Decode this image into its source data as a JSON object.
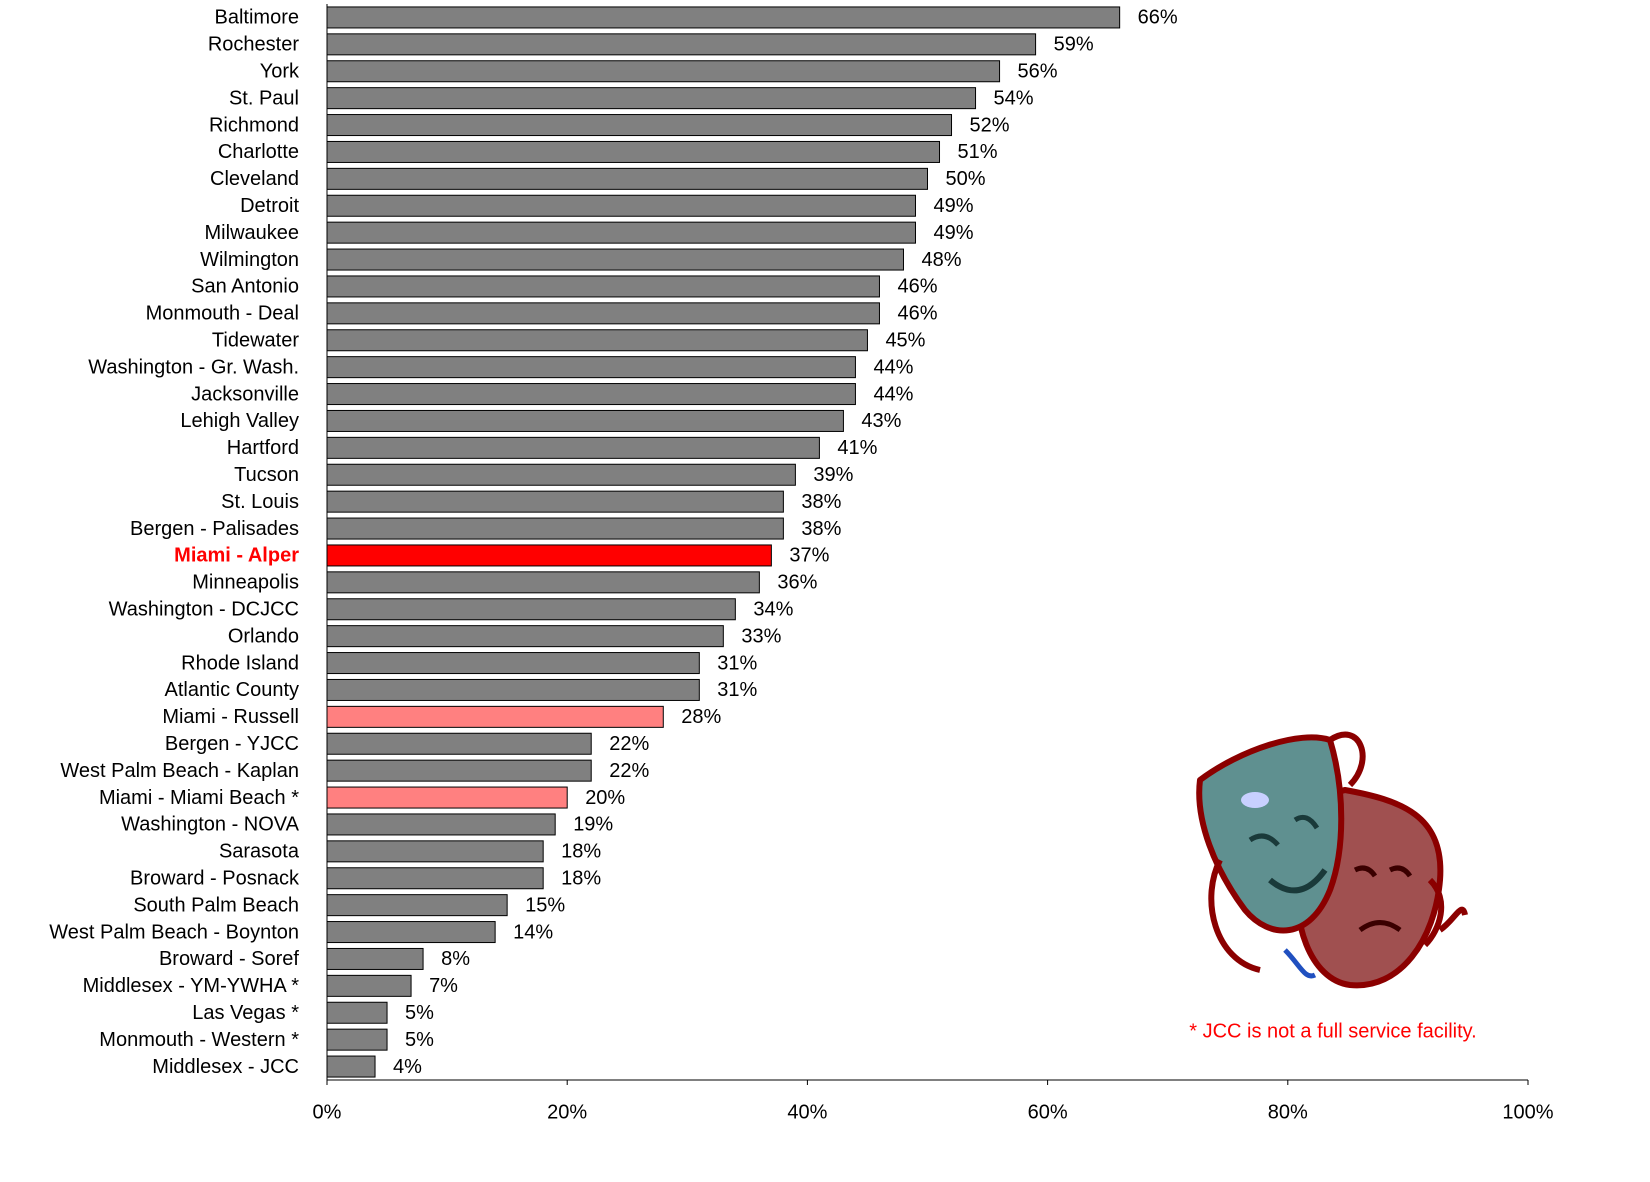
{
  "chart_data": {
    "type": "hbar",
    "categories": [
      "Baltimore",
      "Rochester",
      "York",
      "St. Paul",
      "Richmond",
      "Charlotte",
      "Cleveland",
      "Detroit",
      "Milwaukee",
      "Wilmington",
      "San Antonio",
      "Monmouth - Deal",
      "Tidewater",
      "Washington - Gr. Wash.",
      "Jacksonville",
      "Lehigh Valley",
      "Hartford",
      "Tucson",
      "St. Louis",
      "Bergen - Palisades",
      "Miami - Alper",
      "Minneapolis",
      "Washington - DCJCC",
      "Orlando",
      "Rhode Island",
      "Atlantic County",
      "Miami - Russell",
      "Bergen - YJCC",
      "West Palm Beach - Kaplan",
      "Miami - Miami Beach *",
      "Washington - NOVA",
      "Sarasota",
      "Broward - Posnack",
      "South Palm Beach",
      "West Palm Beach - Boynton",
      "Broward - Soref",
      "Middlesex - YM-YWHA *",
      "Las Vegas *",
      "Monmouth - Western *",
      "Middlesex - JCC"
    ],
    "values": [
      66,
      59,
      56,
      54,
      52,
      51,
      50,
      49,
      49,
      48,
      46,
      46,
      45,
      44,
      44,
      43,
      41,
      39,
      38,
      38,
      37,
      36,
      34,
      33,
      31,
      31,
      28,
      22,
      22,
      20,
      19,
      18,
      18,
      15,
      14,
      8,
      7,
      5,
      5,
      4
    ],
    "value_labels": [
      "66%",
      "59%",
      "56%",
      "54%",
      "52%",
      "51%",
      "50%",
      "49%",
      "49%",
      "48%",
      "46%",
      "46%",
      "45%",
      "44%",
      "44%",
      "43%",
      "41%",
      "39%",
      "38%",
      "38%",
      "37%",
      "36%",
      "34%",
      "33%",
      "31%",
      "31%",
      "28%",
      "22%",
      "22%",
      "20%",
      "19%",
      "18%",
      "18%",
      "15%",
      "14%",
      "8%",
      "7%",
      "5%",
      "5%",
      "4%"
    ],
    "colors": [
      "#808080",
      "#808080",
      "#808080",
      "#808080",
      "#808080",
      "#808080",
      "#808080",
      "#808080",
      "#808080",
      "#808080",
      "#808080",
      "#808080",
      "#808080",
      "#808080",
      "#808080",
      "#808080",
      "#808080",
      "#808080",
      "#808080",
      "#808080",
      "#ff0000",
      "#808080",
      "#808080",
      "#808080",
      "#808080",
      "#808080",
      "#ff8080",
      "#808080",
      "#808080",
      "#ff8080",
      "#808080",
      "#808080",
      "#808080",
      "#808080",
      "#808080",
      "#808080",
      "#808080",
      "#808080",
      "#808080",
      "#808080"
    ],
    "label_colors": [
      "#000000",
      "#000000",
      "#000000",
      "#000000",
      "#000000",
      "#000000",
      "#000000",
      "#000000",
      "#000000",
      "#000000",
      "#000000",
      "#000000",
      "#000000",
      "#000000",
      "#000000",
      "#000000",
      "#000000",
      "#000000",
      "#000000",
      "#000000",
      "#ff0000",
      "#000000",
      "#000000",
      "#000000",
      "#000000",
      "#000000",
      "#000000",
      "#000000",
      "#000000",
      "#000000",
      "#000000",
      "#000000",
      "#000000",
      "#000000",
      "#000000",
      "#000000",
      "#000000",
      "#000000",
      "#000000",
      "#000000"
    ],
    "label_weights": [
      "normal",
      "normal",
      "normal",
      "normal",
      "normal",
      "normal",
      "normal",
      "normal",
      "normal",
      "normal",
      "normal",
      "normal",
      "normal",
      "normal",
      "normal",
      "normal",
      "normal",
      "normal",
      "normal",
      "normal",
      "bold",
      "normal",
      "normal",
      "normal",
      "normal",
      "normal",
      "normal",
      "normal",
      "normal",
      "normal",
      "normal",
      "normal",
      "normal",
      "normal",
      "normal",
      "normal",
      "normal",
      "normal",
      "normal",
      "normal"
    ],
    "xlim": [
      0,
      100
    ],
    "xticks": [
      {
        "value": 0,
        "label": "0%"
      },
      {
        "value": 20,
        "label": "20%"
      },
      {
        "value": 40,
        "label": "40%"
      },
      {
        "value": 60,
        "label": "60%"
      },
      {
        "value": 80,
        "label": "80%"
      },
      {
        "value": 100,
        "label": "100%"
      }
    ],
    "annotation": "* JCC is not a full service facility.",
    "annotation_color": "#ff0000"
  }
}
